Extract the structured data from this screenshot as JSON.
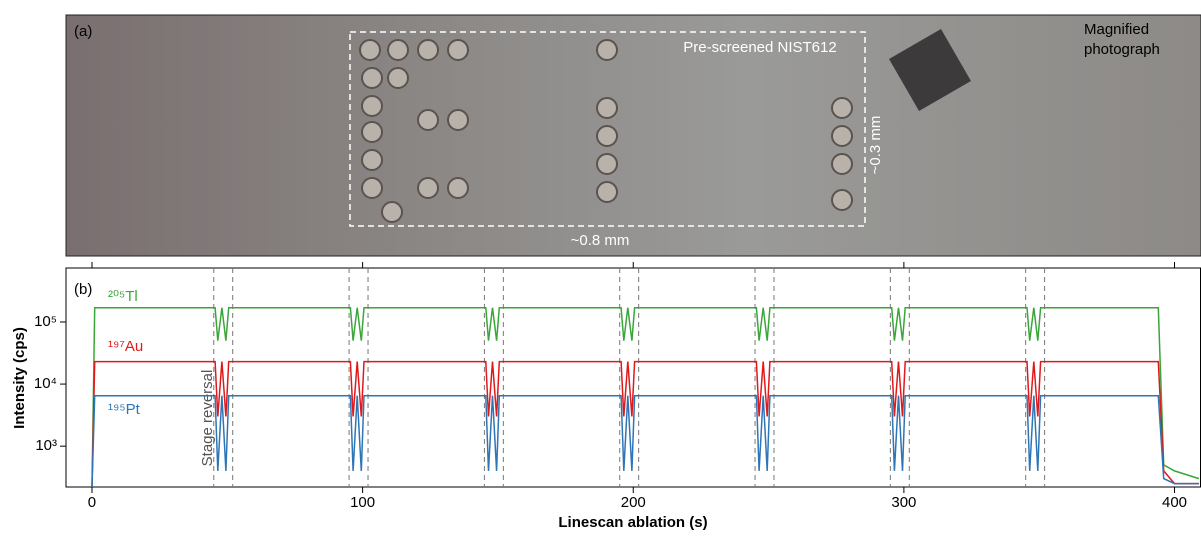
{
  "photo": {
    "panel_label": "(a)",
    "region_label": "Pre-screened NIST612",
    "height_label": "~0.3 mm",
    "width_label": "~0.8 mm",
    "caption": [
      "Magnified",
      "photograph"
    ]
  },
  "chart_data": {
    "type": "line",
    "panel_label": "(b)",
    "x_label": "Linescan ablation (s)",
    "y_label": "Intensity (cps)",
    "annotation": "Stage reversal",
    "x": [
      0,
      1,
      45.5,
      46.5,
      48,
      49.5,
      50.5,
      95.5,
      96.5,
      98,
      99.5,
      100.5,
      145.5,
      146.5,
      148,
      149.5,
      150.5,
      195.5,
      196.5,
      198,
      199.5,
      200.5,
      245.5,
      246.5,
      248,
      249.5,
      250.5,
      295.5,
      296.5,
      298,
      299.5,
      300.5,
      345.5,
      346.5,
      348,
      349.5,
      350.5,
      394,
      396,
      400,
      409
    ],
    "series": [
      {
        "name": "²⁰⁵Tl",
        "color": "#3aa63a",
        "values": [
          220,
          170000,
          170000,
          50000,
          170000,
          50000,
          170000,
          170000,
          50000,
          170000,
          50000,
          170000,
          170000,
          50000,
          170000,
          50000,
          170000,
          170000,
          50000,
          170000,
          50000,
          170000,
          170000,
          50000,
          170000,
          50000,
          170000,
          170000,
          50000,
          170000,
          50000,
          170000,
          170000,
          50000,
          170000,
          50000,
          170000,
          170000,
          500,
          400,
          300
        ]
      },
      {
        "name": "¹⁹⁷Au",
        "color": "#e0191c",
        "values": [
          220,
          23000,
          23000,
          3000,
          23000,
          3000,
          23000,
          23000,
          3000,
          23000,
          3000,
          23000,
          23000,
          3000,
          23000,
          3000,
          23000,
          23000,
          3000,
          23000,
          3000,
          23000,
          23000,
          3000,
          23000,
          3000,
          23000,
          23000,
          3000,
          23000,
          3000,
          23000,
          23000,
          3000,
          23000,
          3000,
          23000,
          23000,
          400,
          250,
          250
        ]
      },
      {
        "name": "¹⁹⁵Pt",
        "color": "#2e75b6",
        "values": [
          220,
          6500,
          6500,
          400,
          6500,
          400,
          6500,
          6500,
          400,
          6500,
          400,
          6500,
          6500,
          400,
          6500,
          400,
          6500,
          6500,
          400,
          6500,
          400,
          6500,
          6500,
          400,
          6500,
          400,
          6500,
          6500,
          400,
          6500,
          400,
          6500,
          6500,
          400,
          6500,
          400,
          6500,
          6500,
          300,
          250,
          250
        ]
      }
    ],
    "reversal_lines": [
      45,
      52,
      95,
      102,
      145,
      152,
      195,
      202,
      245,
      252,
      295,
      302,
      345,
      352
    ],
    "xlim": [
      -9.6,
      409.6
    ],
    "xticks": [
      0,
      100,
      200,
      300,
      400
    ],
    "ylim": [
      220,
      740000
    ],
    "log_y": true,
    "yticks": [
      {
        "value": 1000,
        "label": "10³"
      },
      {
        "value": 10000,
        "label": "10⁴"
      },
      {
        "value": 100000,
        "label": "10⁵"
      }
    ]
  }
}
